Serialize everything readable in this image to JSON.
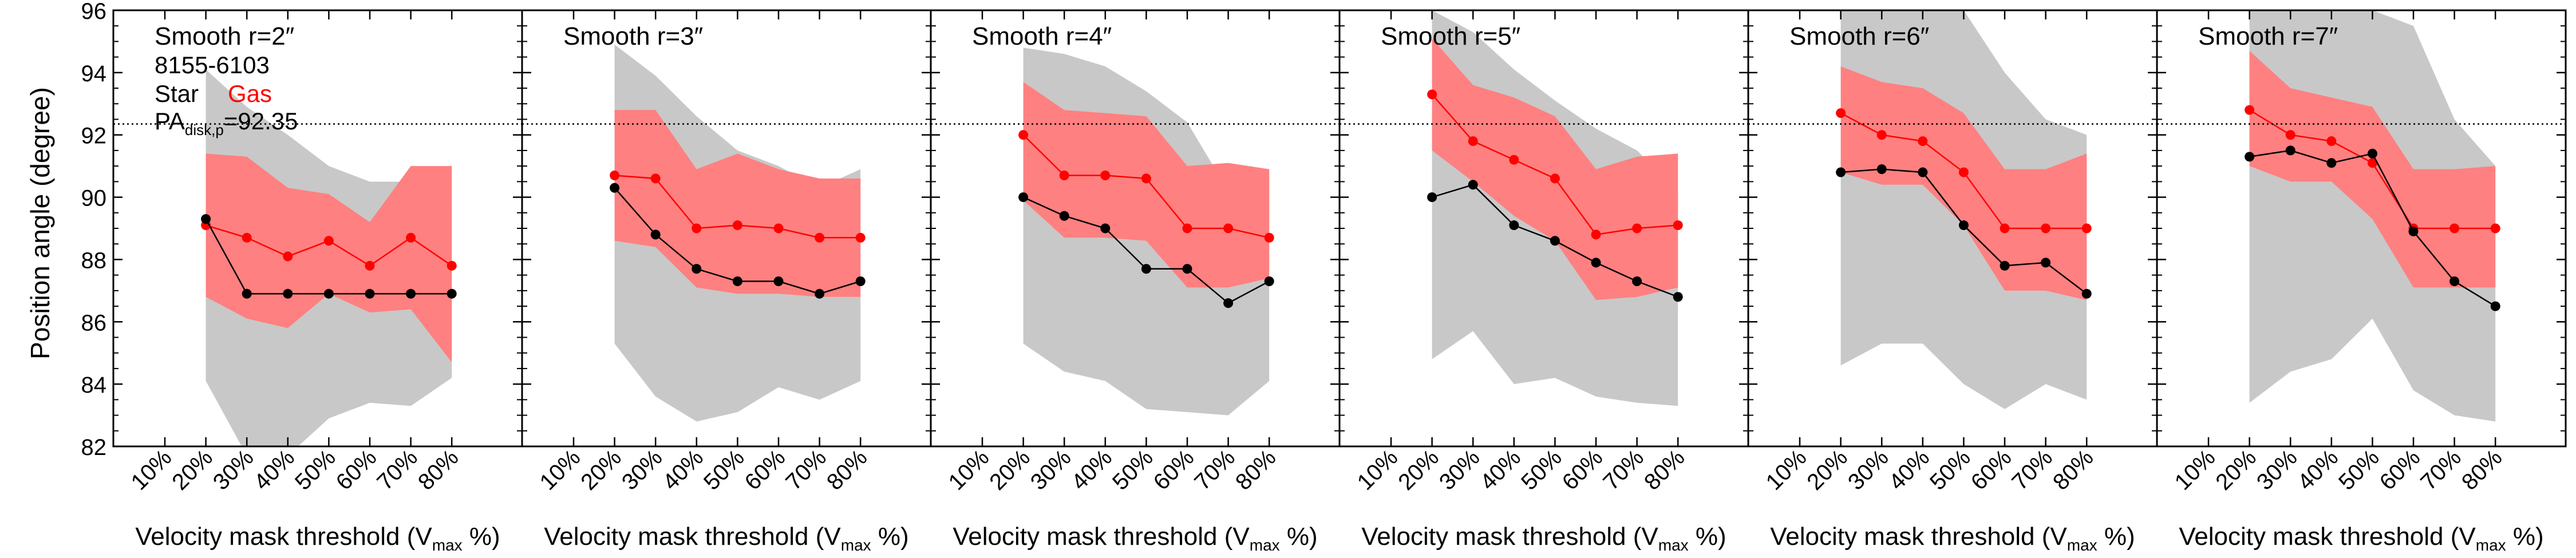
{
  "figure": {
    "ylabel": "Position angle (degree)",
    "xlabel_main": "Velocity mask threshold (V",
    "xlabel_sub": "max",
    "xlabel_tail": " %)",
    "legend": {
      "galaxy_id": "8155-6103",
      "star_label": "Star",
      "gas_label": "Gas",
      "pa_prefix": "PA",
      "pa_sub": "disk,p",
      "pa_value_text": "=92.35"
    },
    "colors": {
      "star": "#000000",
      "gas": "#ff0000",
      "gas_band": "#ff8080",
      "star_band": "#c8c8c8",
      "reference_line": "#000000"
    }
  },
  "chart_data": [
    {
      "type": "line",
      "title": "Smooth r=2″",
      "categories": [
        "10%",
        "20%",
        "30%",
        "40%",
        "50%",
        "60%",
        "70%",
        "80%"
      ],
      "ylim": [
        82,
        96
      ],
      "yticks": [
        82,
        84,
        86,
        88,
        90,
        92,
        94,
        96
      ],
      "reference_line": 92.35,
      "series": [
        {
          "name": "Star",
          "values": [
            null,
            89.3,
            86.9,
            86.9,
            86.9,
            86.9,
            86.9,
            86.9
          ]
        },
        {
          "name": "Gas",
          "values": [
            null,
            89.1,
            88.7,
            88.1,
            88.6,
            87.8,
            88.7,
            87.8
          ]
        }
      ],
      "bands": [
        {
          "series": "Star",
          "lower": [
            null,
            84.1,
            81.7,
            81.7,
            82.9,
            83.4,
            83.3,
            84.2
          ],
          "upper": [
            null,
            94.1,
            92.9,
            92.0,
            91.0,
            90.5,
            90.5,
            89.7
          ]
        },
        {
          "series": "Gas",
          "lower": [
            null,
            86.8,
            86.1,
            85.8,
            86.9,
            86.3,
            86.4,
            84.7
          ],
          "upper": [
            null,
            91.4,
            91.3,
            90.3,
            90.1,
            89.2,
            91.0,
            91.0
          ]
        }
      ]
    },
    {
      "type": "line",
      "title": "Smooth r=3″",
      "categories": [
        "10%",
        "20%",
        "30%",
        "40%",
        "50%",
        "60%",
        "70%",
        "80%"
      ],
      "ylim": [
        82,
        96
      ],
      "yticks": [
        82,
        84,
        86,
        88,
        90,
        92,
        94,
        96
      ],
      "reference_line": 92.35,
      "series": [
        {
          "name": "Star",
          "values": [
            null,
            90.3,
            88.8,
            87.7,
            87.3,
            87.3,
            86.9,
            87.3
          ]
        },
        {
          "name": "Gas",
          "values": [
            null,
            90.7,
            90.6,
            89.0,
            89.1,
            89.0,
            88.7,
            88.7
          ]
        }
      ],
      "bands": [
        {
          "series": "Star",
          "lower": [
            null,
            85.3,
            83.6,
            82.8,
            83.1,
            83.9,
            83.5,
            84.1
          ],
          "upper": [
            null,
            94.9,
            93.9,
            92.6,
            91.5,
            91.0,
            90.3,
            90.9
          ]
        },
        {
          "series": "Gas",
          "lower": [
            null,
            88.6,
            88.4,
            87.1,
            86.9,
            86.9,
            86.8,
            86.8
          ],
          "upper": [
            null,
            92.8,
            92.8,
            90.9,
            91.4,
            90.9,
            90.6,
            90.6
          ]
        }
      ]
    },
    {
      "type": "line",
      "title": "Smooth r=4″",
      "categories": [
        "10%",
        "20%",
        "30%",
        "40%",
        "50%",
        "60%",
        "70%",
        "80%"
      ],
      "ylim": [
        82,
        96
      ],
      "yticks": [
        82,
        84,
        86,
        88,
        90,
        92,
        94,
        96
      ],
      "reference_line": 92.35,
      "series": [
        {
          "name": "Star",
          "values": [
            null,
            90.0,
            89.4,
            89.0,
            87.7,
            87.7,
            86.6,
            87.3
          ]
        },
        {
          "name": "Gas",
          "values": [
            null,
            92.0,
            90.7,
            90.7,
            90.6,
            89.0,
            89.0,
            88.7
          ]
        }
      ],
      "bands": [
        {
          "series": "Star",
          "lower": [
            null,
            85.3,
            84.4,
            84.1,
            83.2,
            83.1,
            83.0,
            84.1
          ],
          "upper": [
            null,
            94.8,
            94.6,
            94.2,
            93.4,
            92.4,
            90.2,
            90.6
          ]
        },
        {
          "series": "Gas",
          "lower": [
            null,
            89.9,
            88.7,
            88.7,
            88.6,
            87.1,
            87.1,
            87.4
          ],
          "upper": [
            null,
            93.7,
            92.8,
            92.7,
            92.6,
            91.0,
            91.1,
            90.9
          ]
        }
      ]
    },
    {
      "type": "line",
      "title": "Smooth r=5″",
      "categories": [
        "10%",
        "20%",
        "30%",
        "40%",
        "50%",
        "60%",
        "70%",
        "80%"
      ],
      "ylim": [
        82,
        96
      ],
      "yticks": [
        82,
        84,
        86,
        88,
        90,
        92,
        94,
        96
      ],
      "reference_line": 92.35,
      "series": [
        {
          "name": "Star",
          "values": [
            null,
            90.0,
            90.4,
            89.1,
            88.6,
            87.9,
            87.3,
            86.8
          ]
        },
        {
          "name": "Gas",
          "values": [
            null,
            93.3,
            91.8,
            91.2,
            90.6,
            88.8,
            89.0,
            89.1
          ]
        }
      ],
      "bands": [
        {
          "series": "Star",
          "lower": [
            null,
            84.8,
            85.7,
            84.0,
            84.2,
            83.6,
            83.4,
            83.3
          ],
          "upper": [
            null,
            96.0,
            95.3,
            94.1,
            93.1,
            92.2,
            91.5,
            90.2
          ]
        },
        {
          "series": "Gas",
          "lower": [
            null,
            91.5,
            90.5,
            89.4,
            88.6,
            86.7,
            86.8,
            87.1
          ],
          "upper": [
            null,
            95.1,
            93.6,
            93.2,
            92.6,
            90.9,
            91.3,
            91.4
          ]
        }
      ]
    },
    {
      "type": "line",
      "title": "Smooth r=6″",
      "categories": [
        "10%",
        "20%",
        "30%",
        "40%",
        "50%",
        "60%",
        "70%",
        "80%"
      ],
      "ylim": [
        82,
        96
      ],
      "yticks": [
        82,
        84,
        86,
        88,
        90,
        92,
        94,
        96
      ],
      "reference_line": 92.35,
      "series": [
        {
          "name": "Star",
          "values": [
            null,
            90.8,
            90.9,
            90.8,
            89.1,
            87.8,
            87.9,
            86.9
          ]
        },
        {
          "name": "Gas",
          "values": [
            null,
            92.7,
            92.0,
            91.8,
            90.8,
            89.0,
            89.0,
            89.0
          ]
        }
      ],
      "bands": [
        {
          "series": "Star",
          "lower": [
            null,
            84.6,
            85.3,
            85.3,
            84.0,
            83.2,
            84.0,
            83.5
          ],
          "upper": [
            null,
            96.0,
            96.0,
            96.0,
            96.0,
            94.0,
            92.5,
            92.0
          ]
        },
        {
          "series": "Gas",
          "lower": [
            null,
            90.8,
            90.4,
            90.4,
            89.1,
            87.0,
            87.0,
            86.7
          ],
          "upper": [
            null,
            94.2,
            93.7,
            93.5,
            92.7,
            90.9,
            90.9,
            91.4
          ]
        }
      ]
    },
    {
      "type": "line",
      "title": "Smooth r=7″",
      "categories": [
        "10%",
        "20%",
        "30%",
        "40%",
        "50%",
        "60%",
        "70%",
        "80%"
      ],
      "ylim": [
        82,
        96
      ],
      "yticks": [
        82,
        84,
        86,
        88,
        90,
        92,
        94,
        96
      ],
      "reference_line": 92.35,
      "series": [
        {
          "name": "Star",
          "values": [
            null,
            91.3,
            91.5,
            91.1,
            91.4,
            88.9,
            87.3,
            86.5
          ]
        },
        {
          "name": "Gas",
          "values": [
            null,
            92.8,
            92.0,
            91.8,
            91.1,
            89.0,
            89.0,
            89.0
          ]
        }
      ],
      "bands": [
        {
          "series": "Star",
          "lower": [
            null,
            83.4,
            84.4,
            84.8,
            86.1,
            83.8,
            83.0,
            82.8
          ],
          "upper": [
            null,
            96.0,
            96.0,
            96.0,
            96.0,
            95.5,
            92.5,
            91.0
          ]
        },
        {
          "series": "Gas",
          "lower": [
            null,
            91.0,
            90.5,
            90.5,
            89.3,
            87.1,
            87.1,
            87.1
          ],
          "upper": [
            null,
            94.7,
            93.5,
            93.2,
            92.9,
            90.9,
            90.9,
            91.0
          ]
        }
      ]
    }
  ]
}
